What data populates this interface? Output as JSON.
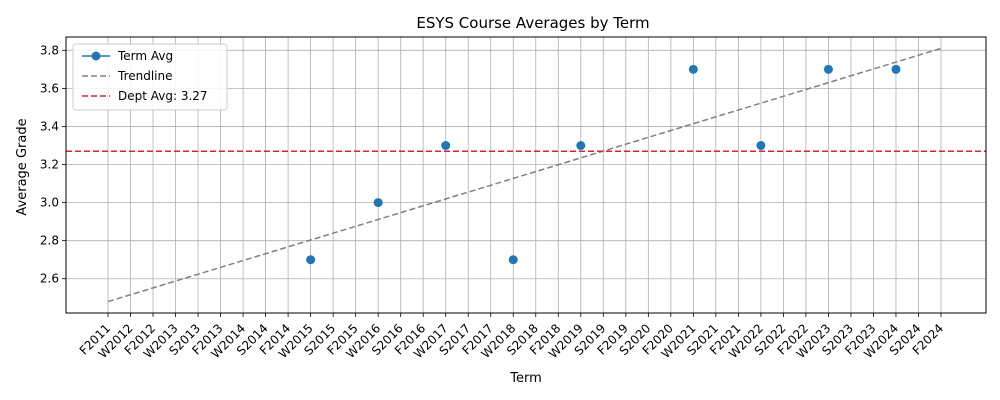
{
  "chart_data": {
    "type": "line",
    "title": "ESYS Course Averages by Term",
    "xlabel": "Term",
    "ylabel": "Average Grade",
    "categories": [
      "F2011",
      "W2012",
      "F2012",
      "W2013",
      "S2013",
      "F2013",
      "W2014",
      "S2014",
      "F2014",
      "W2015",
      "S2015",
      "F2015",
      "W2016",
      "S2016",
      "F2016",
      "W2017",
      "S2017",
      "F2017",
      "W2018",
      "S2018",
      "F2018",
      "W2019",
      "S2019",
      "F2019",
      "S2020",
      "F2020",
      "W2021",
      "S2021",
      "F2021",
      "W2022",
      "S2022",
      "F2022",
      "W2023",
      "S2023",
      "F2023",
      "W2024",
      "S2024",
      "F2024"
    ],
    "yticks": [
      "2.6",
      "2.8",
      "3.0",
      "3.2",
      "3.4",
      "3.6",
      "3.8"
    ],
    "ylim": [
      2.42,
      3.87
    ],
    "grid": true,
    "legend_position": "top-left",
    "series": [
      {
        "name": "Term Avg",
        "style": "markers",
        "color": "#1f77b4",
        "points": [
          {
            "x": "W2015",
            "y": 2.7
          },
          {
            "x": "W2016",
            "y": 3.0
          },
          {
            "x": "W2017",
            "y": 3.3
          },
          {
            "x": "W2018",
            "y": 2.7
          },
          {
            "x": "W2019",
            "y": 3.3
          },
          {
            "x": "W2021",
            "y": 3.7
          },
          {
            "x": "W2022",
            "y": 3.3
          },
          {
            "x": "W2023",
            "y": 3.7
          },
          {
            "x": "W2024",
            "y": 3.7
          }
        ]
      },
      {
        "name": "Trendline",
        "style": "dashed",
        "color": "#808080",
        "points": [
          {
            "x": "F2011",
            "y": 2.48
          },
          {
            "x": "F2024",
            "y": 3.81
          }
        ]
      },
      {
        "name": "Dept Avg: 3.27",
        "style": "dashed-horizontal",
        "color": "#d62728",
        "y": 3.27
      }
    ]
  }
}
